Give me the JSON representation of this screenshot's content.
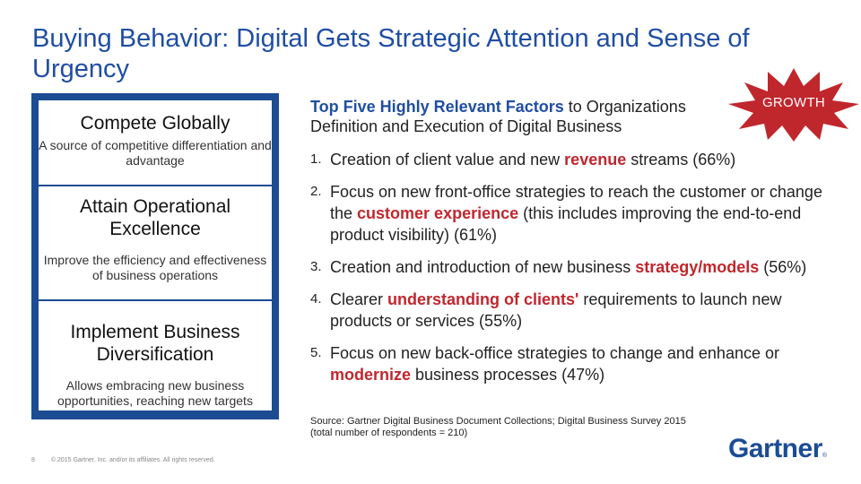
{
  "title": "Buying Behavior: Digital Gets Strategic Attention and Sense of Urgency",
  "left_panel": {
    "cards": [
      {
        "heading": "Compete Globally",
        "text": "A source of competitive differentiation and advantage"
      },
      {
        "heading": "Attain Operational Excellence",
        "text": "Improve the efficiency and effectiveness of business operations"
      },
      {
        "heading": "Implement Business Diversification",
        "text": "Allows embracing new business opportunities, reaching new targets"
      }
    ]
  },
  "heading": {
    "highlight": "Top Five Highly Relevant Factors",
    "rest": "to Organizations Definition and Execution of Digital Business"
  },
  "badge": {
    "label": "GROWTH",
    "color": "#c0272d"
  },
  "factors": [
    {
      "num": "1.",
      "pre": "Creation of client value and new ",
      "hi": "revenue",
      "post": " streams (66%)"
    },
    {
      "num": "2.",
      "pre": "Focus on new front-office strategies to reach the customer or change the ",
      "hi": "customer experience",
      "post": " (this includes improving the end-to-end product visibility) (61%)"
    },
    {
      "num": "3.",
      "pre": "Creation and introduction of new business ",
      "hi": "strategy/models",
      "post": " (56%)"
    },
    {
      "num": "4.",
      "pre": "Clearer ",
      "hi": "understanding of clients'",
      "post": " requirements to launch new products or services (55%)"
    },
    {
      "num": "5.",
      "pre": "Focus on new back-office strategies to change and enhance or ",
      "hi": "modernize",
      "post": " business processes (47%)"
    }
  ],
  "source": {
    "line1": "Source: Gartner Digital Business Document Collections; Digital Business Survey 2015",
    "line2": "(total number of respondents = 210)"
  },
  "footer": {
    "page": "8",
    "copyright": "© 2015 Gartner, Inc. and/or its affiliates. All rights reserved."
  },
  "logo": {
    "text": "Gartner",
    "mark": "®"
  },
  "colors": {
    "brand_blue": "#1b4c94",
    "title_blue": "#1f4ea3",
    "accent_red": "#c0272d"
  }
}
